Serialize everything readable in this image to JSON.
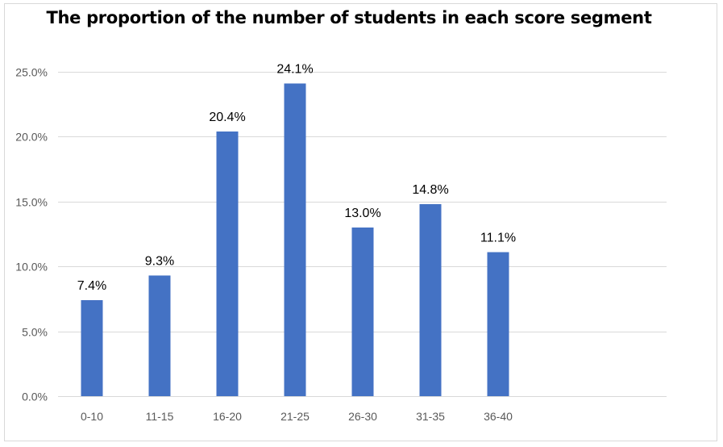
{
  "chart_data": {
    "type": "bar",
    "title": "The proportion of the number of students in each score segment",
    "xlabel": "",
    "ylabel": "",
    "categories": [
      "0-10",
      "11-15",
      "16-20",
      "21-25",
      "26-30",
      "31-35",
      "36-40"
    ],
    "values": [
      7.4,
      9.3,
      20.4,
      24.1,
      13.0,
      14.8,
      11.1
    ],
    "data_labels": [
      "7.4%",
      "9.3%",
      "20.4%",
      "24.1%",
      "13.0%",
      "14.8%",
      "11.1%"
    ],
    "y_ticks": [
      0,
      5,
      10,
      15,
      20,
      25
    ],
    "y_tick_labels": [
      "0.0%",
      "5.0%",
      "10.0%",
      "15.0%",
      "20.0%",
      "25.0%"
    ],
    "ylim": [
      0,
      25
    ],
    "grid": true,
    "legend": "none",
    "colors": {
      "bar": "#4472c4",
      "grid": "#d9d9d9",
      "tick_text": "#595959"
    }
  }
}
